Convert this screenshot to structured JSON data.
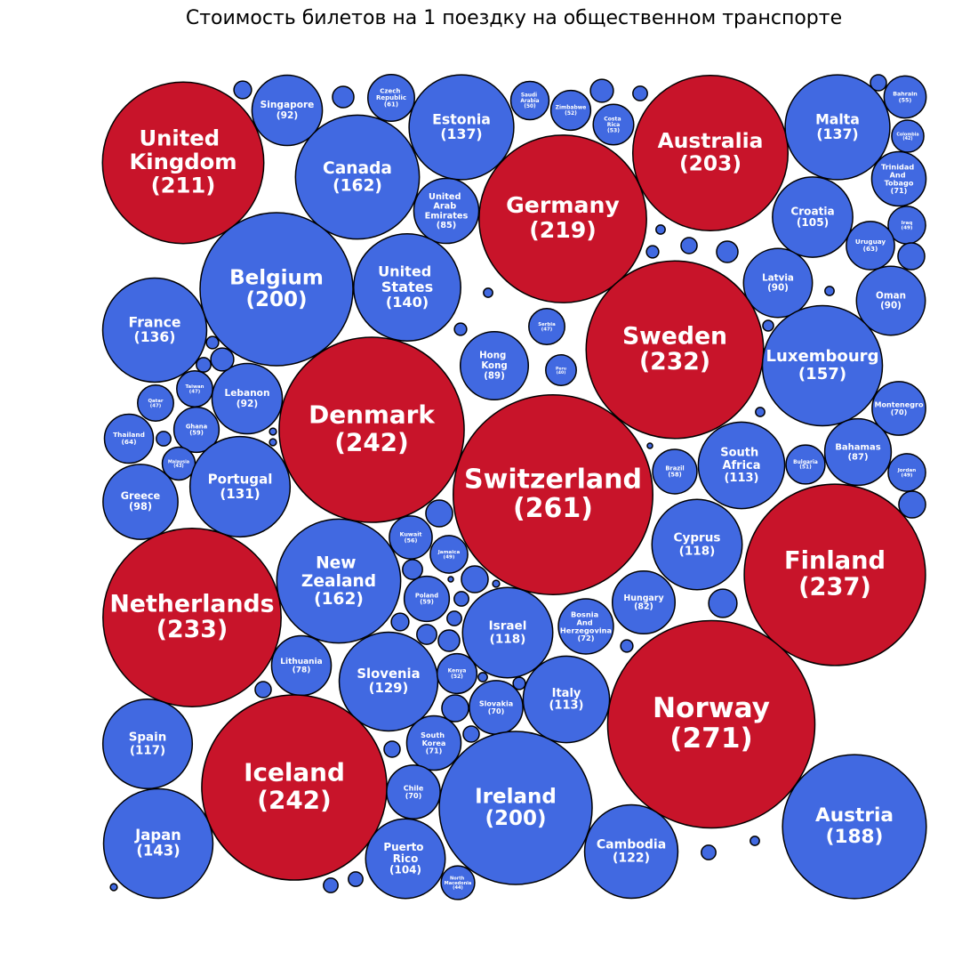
{
  "chart_data": {
    "type": "bubble",
    "title": "Стоимость билетов на 1 поездку на общественном транспорте",
    "categories": [
      "United Kingdom",
      "Singapore",
      "Czech Republic",
      "Estonia",
      "Saudi Arabia",
      "Zimbabwe",
      "Costa Rica",
      "Australia",
      "Malta",
      "Bahrain",
      "Colombia",
      "Trinidad And Tobago",
      "Iraq",
      "Canada",
      "United Arab Emirates",
      "Germany",
      "Croatia",
      "Uruguay",
      "Oman",
      "Latvia",
      "Belgium",
      "United States",
      "France",
      "Serbia",
      "Sweden",
      "Hong Kong",
      "Peru",
      "Luxembourg",
      "Lebanon",
      "Taiwan",
      "Qatar",
      "Denmark",
      "Montenegro",
      "Thailand",
      "Ghana",
      "Malaysia",
      "Portugal",
      "Bahamas",
      "Brazil",
      "South Africa",
      "Bulgaria",
      "Jordan",
      "Switzerland",
      "Greece",
      "Kuwait",
      "Jamaica",
      "Cyprus",
      "Finland",
      "New Zealand",
      "Netherlands",
      "Poland",
      "Hungary",
      "Israel",
      "Bosnia And Herzegovina",
      "Lithuania",
      "Slovenia",
      "Kenya",
      "Slovakia",
      "Italy",
      "Norway",
      "Spain",
      "South Korea",
      "Iceland",
      "Chile",
      "Ireland",
      "Austria",
      "Japan",
      "Puerto Rico",
      "Cambodia",
      "North Macedonia",
      null,
      null,
      null,
      null,
      null,
      null,
      null,
      null,
      null,
      null,
      null,
      null,
      null,
      null,
      null,
      null,
      null,
      null,
      null,
      null,
      null,
      null,
      null,
      null,
      null,
      null,
      null,
      null,
      null,
      null,
      null,
      null,
      null,
      null,
      null,
      null,
      null,
      null,
      null,
      null,
      null,
      null,
      null,
      null,
      null,
      null
    ],
    "values": [
      211,
      92,
      61,
      137,
      50,
      52,
      53,
      203,
      137,
      55,
      42,
      71,
      49,
      162,
      85,
      219,
      105,
      63,
      90,
      90,
      200,
      140,
      136,
      47,
      232,
      89,
      40,
      157,
      92,
      47,
      47,
      242,
      70,
      64,
      59,
      43,
      131,
      87,
      58,
      113,
      51,
      49,
      261,
      98,
      56,
      49,
      118,
      237,
      162,
      233,
      59,
      82,
      118,
      72,
      78,
      129,
      52,
      70,
      113,
      271,
      117,
      71,
      242,
      70,
      200,
      188,
      143,
      104,
      122,
      44,
      23,
      28,
      30,
      19,
      21,
      12,
      21,
      28,
      16,
      35,
      12,
      12,
      16,
      14,
      16,
      30,
      19,
      12,
      9,
      9,
      19,
      7,
      35,
      35,
      26,
      35,
      7,
      9,
      19,
      37,
      23,
      19,
      26,
      28,
      12,
      16,
      16,
      21,
      35,
      21,
      21,
      19,
      12,
      19,
      19,
      9
    ],
    "value_labels": [
      "(211)",
      "(92)",
      "(61)",
      "(137)",
      "(50)",
      "(52)",
      "(53)",
      "(203)",
      "(137)",
      "(55)",
      "(42)",
      "(71)",
      "(49)",
      "(162)",
      "(85)",
      "(219)",
      "(105)",
      "(63)",
      "(90)",
      "(90)",
      "(200)",
      "(140)",
      "(136)",
      "(47)",
      "(232)",
      "(89)",
      "(40)",
      "(157)",
      "(92)",
      "(47)",
      "(47)",
      "(242)",
      "(70)",
      "(64)",
      "(59)",
      "(43)",
      "(131)",
      "(87)",
      "(58)",
      "(113)",
      "(51)",
      "(49)",
      "(261)",
      "(98)",
      "(56)",
      "(49)",
      "(118)",
      "(237)",
      "(162)",
      "(233)",
      "(59)",
      "(82)",
      "(118)",
      "(72)",
      "(78)",
      "(129)",
      "(52)",
      "(70)",
      "(113)",
      "(271)",
      "(117)",
      "(71)",
      "(242)",
      "(70)",
      "(200)",
      "(188)",
      "(143)",
      "(104)",
      "(122)",
      "(44)",
      null,
      null,
      null,
      null,
      null,
      null,
      null,
      null,
      null,
      null,
      null,
      null,
      null,
      null,
      null,
      null,
      null,
      null,
      null,
      null,
      null,
      null,
      null,
      null,
      null,
      null,
      null,
      null,
      null,
      null,
      null,
      null,
      null,
      null,
      null,
      null,
      null,
      null,
      null,
      null,
      null,
      null,
      null,
      null,
      null,
      null
    ],
    "colors": [
      "#c8142a",
      "#4169e1",
      "#4169e1",
      "#4169e1",
      "#4169e1",
      "#4169e1",
      "#4169e1",
      "#c8142a",
      "#4169e1",
      "#4169e1",
      "#4169e1",
      "#4169e1",
      "#4169e1",
      "#4169e1",
      "#4169e1",
      "#c8142a",
      "#4169e1",
      "#4169e1",
      "#4169e1",
      "#4169e1",
      "#4169e1",
      "#4169e1",
      "#4169e1",
      "#4169e1",
      "#c8142a",
      "#4169e1",
      "#4169e1",
      "#4169e1",
      "#4169e1",
      "#4169e1",
      "#4169e1",
      "#c8142a",
      "#4169e1",
      "#4169e1",
      "#4169e1",
      "#4169e1",
      "#4169e1",
      "#4169e1",
      "#4169e1",
      "#4169e1",
      "#4169e1",
      "#4169e1",
      "#c8142a",
      "#4169e1",
      "#4169e1",
      "#4169e1",
      "#4169e1",
      "#c8142a",
      "#4169e1",
      "#c8142a",
      "#4169e1",
      "#4169e1",
      "#4169e1",
      "#4169e1",
      "#4169e1",
      "#4169e1",
      "#4169e1",
      "#4169e1",
      "#4169e1",
      "#c8142a",
      "#4169e1",
      "#4169e1",
      "#c8142a",
      "#4169e1",
      "#4169e1",
      "#4169e1",
      "#4169e1",
      "#4169e1",
      "#4169e1",
      "#4169e1",
      "#4169e1",
      "#4169e1",
      "#4169e1",
      "#4169e1",
      "#4169e1",
      "#4169e1",
      "#4169e1",
      "#4169e1",
      "#4169e1",
      "#4169e1",
      "#4169e1",
      "#4169e1",
      "#4169e1",
      "#4169e1",
      "#4169e1",
      "#4169e1",
      "#4169e1",
      "#4169e1",
      "#4169e1",
      "#4169e1",
      "#4169e1",
      "#4169e1",
      "#4169e1",
      "#4169e1",
      "#4169e1",
      "#4169e1",
      "#4169e1",
      "#4169e1",
      "#4169e1",
      "#4169e1",
      "#4169e1",
      "#4169e1",
      "#4169e1",
      "#4169e1",
      "#4169e1",
      "#4169e1",
      "#4169e1",
      "#4169e1",
      "#4169e1",
      "#4169e1",
      "#4169e1",
      "#4169e1",
      "#4169e1",
      "#4169e1",
      "#4169e1",
      "#4169e1"
    ]
  }
}
